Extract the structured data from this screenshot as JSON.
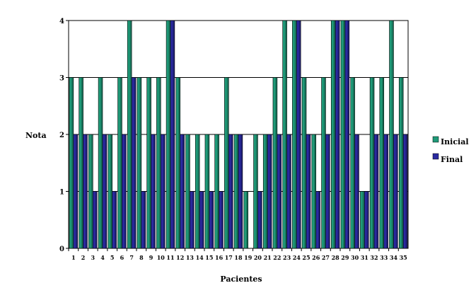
{
  "chart_data": {
    "type": "bar",
    "xlabel": "Pacientes",
    "ylabel": "Nota",
    "ylim": [
      0,
      4
    ],
    "yticks": [
      "0",
      "1",
      "2",
      "3",
      "4"
    ],
    "grid": true,
    "legend_position": "right",
    "categories": [
      "1",
      "2",
      "3",
      "4",
      "5",
      "6",
      "7",
      "8",
      "9",
      "10",
      "11",
      "12",
      "13",
      "14",
      "15",
      "16",
      "17",
      "18",
      "19",
      "20",
      "21",
      "22",
      "23",
      "24",
      "25",
      "26",
      "27",
      "28",
      "29",
      "30",
      "31",
      "32",
      "33",
      "34",
      "35"
    ],
    "series": [
      {
        "name": "Inicial",
        "color": "#1f9a78",
        "values": [
          3,
          3,
          2,
          3,
          2,
          3,
          4,
          3,
          3,
          3,
          4,
          3,
          2,
          2,
          2,
          2,
          3,
          2,
          1,
          2,
          2,
          3,
          4,
          4,
          3,
          2,
          3,
          4,
          4,
          3,
          1,
          3,
          3,
          4,
          3
        ]
      },
      {
        "name": "Final",
        "color": "#2a2aa0",
        "values": [
          2,
          2,
          1,
          2,
          1,
          2,
          3,
          1,
          2,
          2,
          4,
          2,
          1,
          1,
          1,
          1,
          2,
          2,
          0,
          1,
          2,
          2,
          2,
          4,
          2,
          1,
          2,
          4,
          4,
          2,
          1,
          2,
          2,
          2,
          2
        ]
      }
    ]
  }
}
